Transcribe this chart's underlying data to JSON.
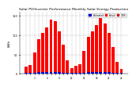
{
  "title": "Solar PV/Inverter Performance Monthly Solar Energy Production",
  "title_fontsize": 3.2,
  "bar_values_red": [
    18,
    22,
    55,
    90,
    105,
    120,
    140,
    135,
    110,
    75,
    35,
    15,
    20,
    25,
    60,
    95,
    110,
    125,
    145,
    130,
    105,
    70,
    30,
    12
  ],
  "bar_values_blue": [
    2,
    2,
    3,
    4,
    4,
    5,
    5,
    5,
    4,
    3,
    2,
    2,
    2,
    2,
    3,
    4,
    4,
    5,
    5,
    5,
    4,
    3,
    2,
    2
  ],
  "bar_color_red": "#ff0000",
  "bar_color_blue": "#0000cc",
  "bar_color_dark": "#333333",
  "ylim": [
    0,
    160
  ],
  "yticks": [
    0,
    50,
    100,
    150
  ],
  "ylabel": "kWh",
  "ylabel_fontsize": 3.0,
  "grid_color": "#aaaaaa",
  "bg_color": "#ffffff",
  "legend_labels": [
    "Estimated",
    "Actual",
    "2006"
  ],
  "legend_colors": [
    "#0000cc",
    "#ff0000",
    "#cc0000"
  ],
  "n_bars": 24,
  "bar_width": 0.75
}
